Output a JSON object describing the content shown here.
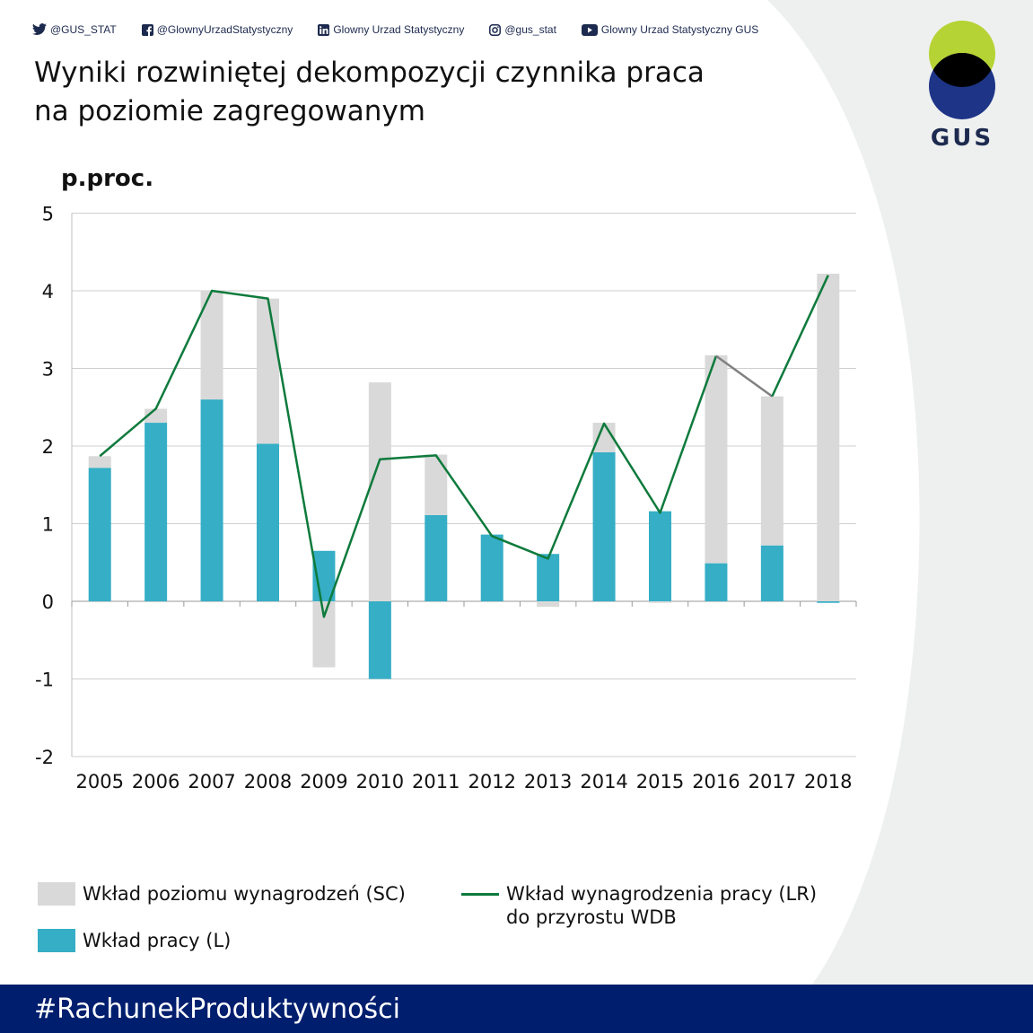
{
  "social": {
    "twitter": "@GUS_STAT",
    "facebook": "@GlownyUrzadStatystyczny",
    "linkedin": "Glowny Urzad Statystyczny",
    "instagram": "@gus_stat",
    "youtube": "Glowny Urzad Statystyczny GUS"
  },
  "title_line1": "Wyniki rozwiniętej dekompozycji czynnika praca",
  "title_line2": "na poziomie zagregowanym",
  "logo_text": "GUS",
  "footer_hashtag": "#RachunekProduktywności",
  "colors": {
    "sc": "#d9d9d9",
    "l": "#35aec6",
    "lr": "#0e7a3c",
    "lr_end": "#808080",
    "footer": "#001e6e",
    "logo_green": "#b5d334",
    "logo_blue": "#1d3487"
  },
  "chart_data": {
    "type": "bar",
    "unit": "p.proc.",
    "categories": [
      "2005",
      "2006",
      "2007",
      "2008",
      "2009",
      "2010",
      "2011",
      "2012",
      "2013",
      "2014",
      "2015",
      "2016",
      "2017",
      "2018"
    ],
    "ylim": [
      -2,
      5
    ],
    "yticks": [
      5,
      4,
      3,
      2,
      1,
      0,
      -1,
      -2
    ],
    "grid": true,
    "stacked": true,
    "series": [
      {
        "name": "Wkład pracy (L)",
        "values": [
          1.72,
          2.3,
          2.6,
          2.03,
          0.65,
          -1.0,
          1.11,
          0.86,
          0.61,
          1.92,
          1.16,
          0.49,
          0.72,
          -0.02
        ]
      },
      {
        "name": "Wkład poziomu wynagrodzeń (SC)",
        "values": [
          0.15,
          0.18,
          1.4,
          1.87,
          -0.85,
          2.82,
          0.78,
          0.0,
          -0.07,
          0.38,
          -0.02,
          2.68,
          1.92,
          4.22
        ]
      }
    ],
    "line": {
      "name_line1": "Wkład wynagrodzenia pracy (LR)",
      "name_line2": "do przyrostu WDB",
      "values": [
        1.87,
        2.48,
        4.0,
        3.9,
        -0.2,
        1.83,
        1.88,
        0.84,
        0.55,
        2.29,
        1.14,
        3.16,
        2.64,
        4.2
      ]
    },
    "legend_placement": "bottom"
  }
}
